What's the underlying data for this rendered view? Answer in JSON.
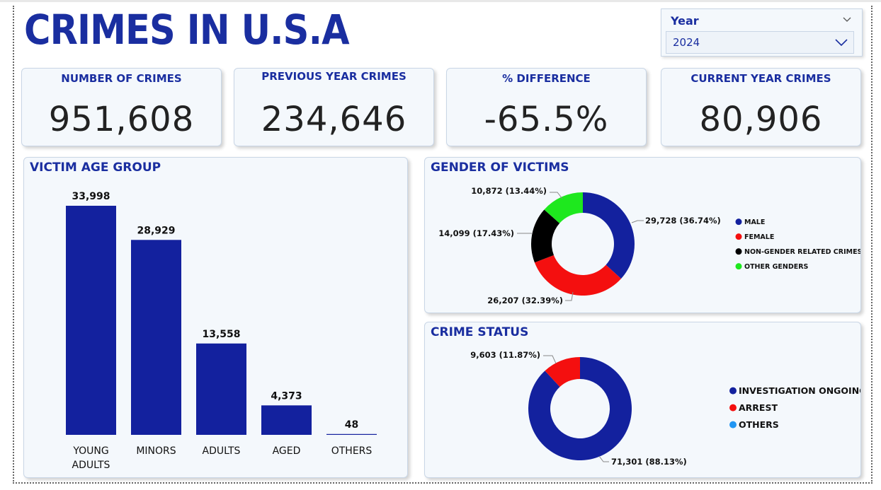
{
  "title": "CRIMES IN U.S.A",
  "slicer": {
    "label": "Year",
    "value": "2024"
  },
  "kpis": [
    {
      "label": "NUMBER OF CRIMES",
      "value": "951,608"
    },
    {
      "label": "PREVIOUS YEAR CRIMES",
      "value": "234,646"
    },
    {
      "label": "% DIFFERENCE",
      "value": "-65.5%"
    },
    {
      "label": "CURRENT YEAR CRIMES",
      "value": "80,906"
    }
  ],
  "colors": {
    "accent": "#1a2ea0",
    "bar": "#13219e",
    "red": "#f40f0f",
    "black": "#000000",
    "green": "#1ee81e",
    "lightblue": "#2196f3"
  },
  "chart_data": [
    {
      "type": "bar",
      "title": "VICTIM AGE GROUP",
      "categories": [
        "YOUNG ADULTS",
        "MINORS",
        "ADULTS",
        "AGED",
        "OTHERS"
      ],
      "category_lines": [
        [
          "YOUNG",
          "ADULTS"
        ],
        [
          "MINORS"
        ],
        [
          "ADULTS"
        ],
        [
          "AGED"
        ],
        [
          "OTHERS"
        ]
      ],
      "values": [
        33998,
        28929,
        13558,
        4373,
        48
      ],
      "value_labels": [
        "33,998",
        "28,929",
        "13,558",
        "4,373",
        "48"
      ],
      "ylim": [
        0,
        33998
      ],
      "grid": false
    },
    {
      "type": "pie",
      "title": "GENDER OF VICTIMS",
      "donut": true,
      "slices": [
        {
          "name": "MALE",
          "value": 29728,
          "label": "29,728 (36.74%)",
          "color": "#13219e"
        },
        {
          "name": "FEMALE",
          "value": 26207,
          "label": "26,207 (32.39%)",
          "color": "#f40f0f"
        },
        {
          "name": "NON-GENDER RELATED CRIMES",
          "value": 14099,
          "label": "14,099 (17.43%)",
          "color": "#000000"
        },
        {
          "name": "OTHER GENDERS",
          "value": 10872,
          "label": "10,872 (13.44%)",
          "color": "#1ee81e"
        }
      ],
      "legend_position": "right"
    },
    {
      "type": "pie",
      "title": "CRIME STATUS",
      "donut": true,
      "slices": [
        {
          "name": "INVESTIGATION ONGOING",
          "value": 71301,
          "label": "71,301 (88.13%)",
          "color": "#13219e"
        },
        {
          "name": "ARREST",
          "value": 9603,
          "label": "9,603 (11.87%)",
          "color": "#f40f0f"
        },
        {
          "name": "OTHERS",
          "value": 0,
          "label": "",
          "color": "#2196f3"
        }
      ],
      "legend_position": "right"
    }
  ]
}
